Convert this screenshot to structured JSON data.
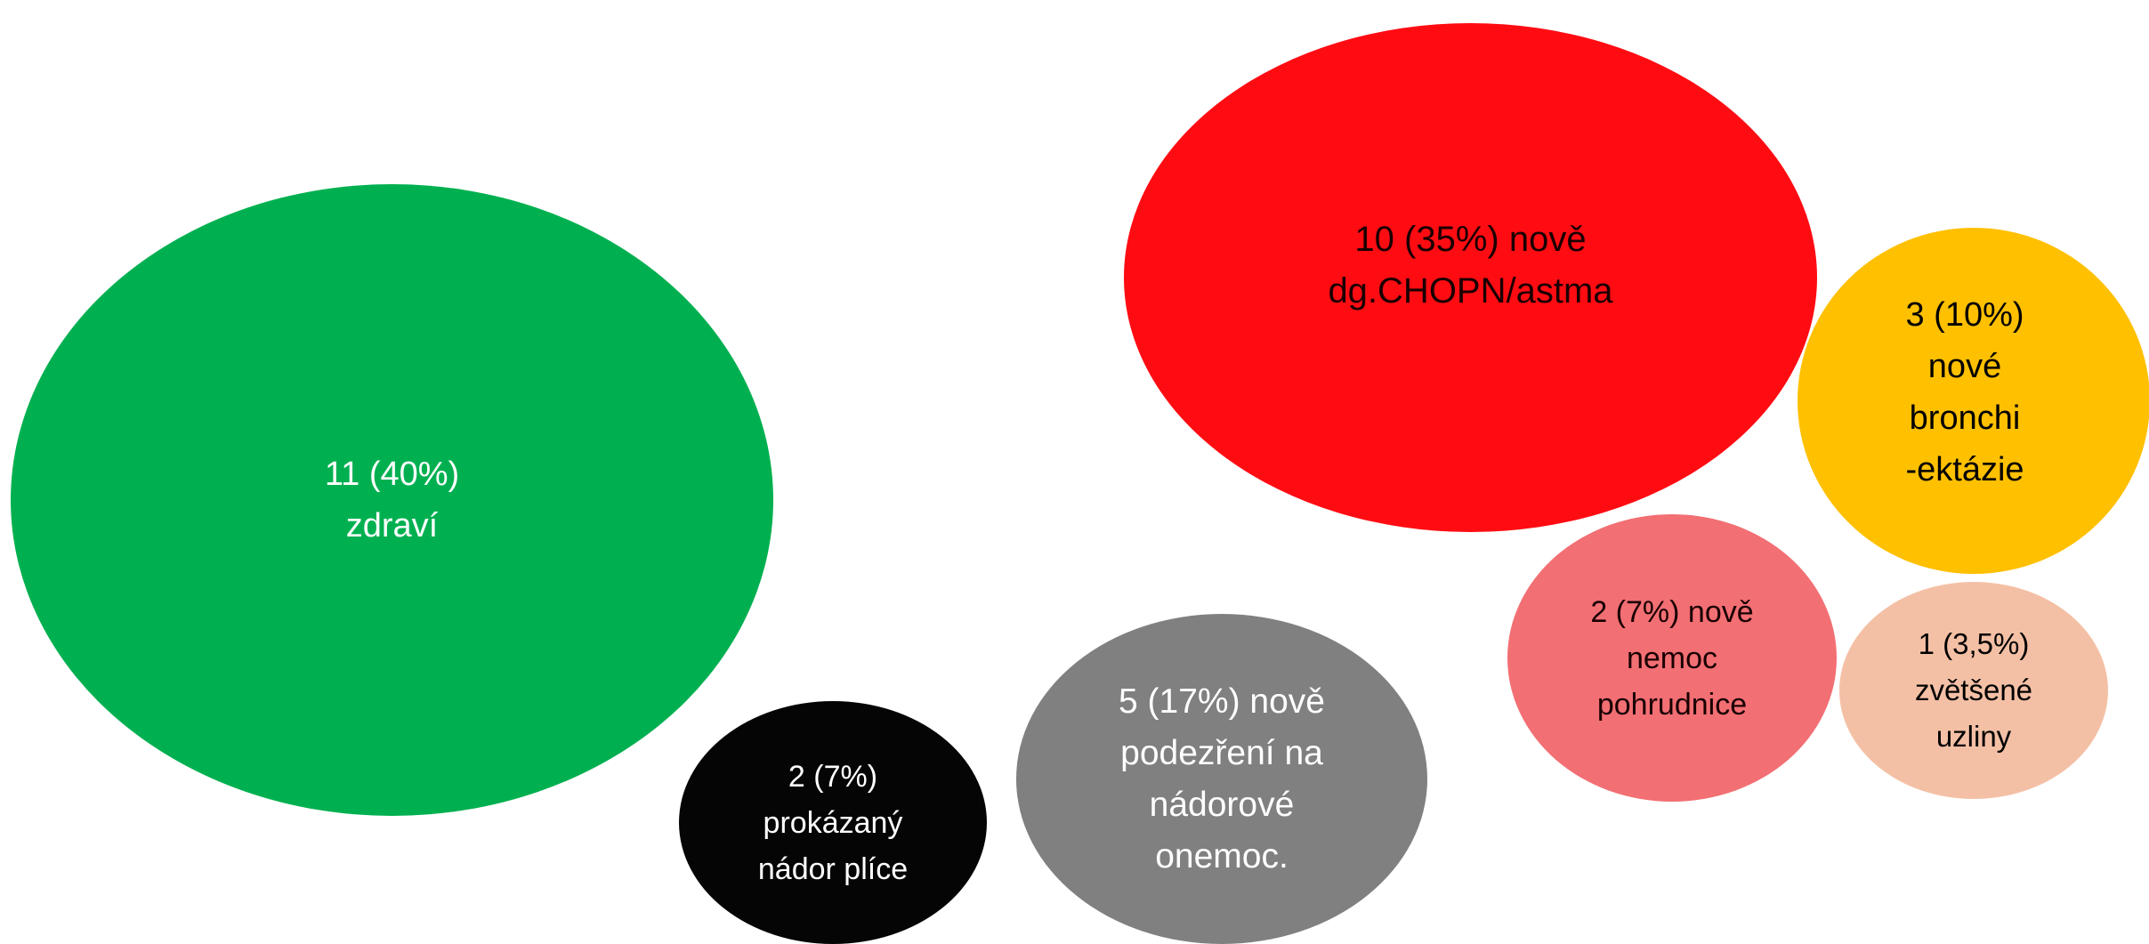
{
  "bubbles": {
    "healthy": {
      "lines": [
        "11 (40%)",
        "zdraví"
      ],
      "color": "#00b050"
    },
    "copd": {
      "lines": [
        "10 (35%) nově",
        "dg.CHOPN/astma"
      ],
      "color": "#ff0c13"
    },
    "bronchiectasis": {
      "lines": [
        "3 (10%)",
        "nové",
        "bronchi",
        "-ektázie"
      ],
      "color": "#ffc000"
    },
    "pleura": {
      "lines": [
        "2 (7%) nově",
        "nemoc",
        "pohrudnice"
      ],
      "color": "#f26f74"
    },
    "nodes": {
      "lines": [
        "1 (3,5%)",
        "zvětšené",
        "uzliny"
      ],
      "color": "#f4c0a5"
    },
    "tumor": {
      "lines": [
        "2 (7%)",
        "prokázaný",
        "nádor plíce"
      ],
      "color": "#050505"
    },
    "suspect": {
      "lines": [
        "5 (17%) nově",
        "podezření na",
        "nádorové",
        "onemoc."
      ],
      "color": "#808080"
    }
  }
}
